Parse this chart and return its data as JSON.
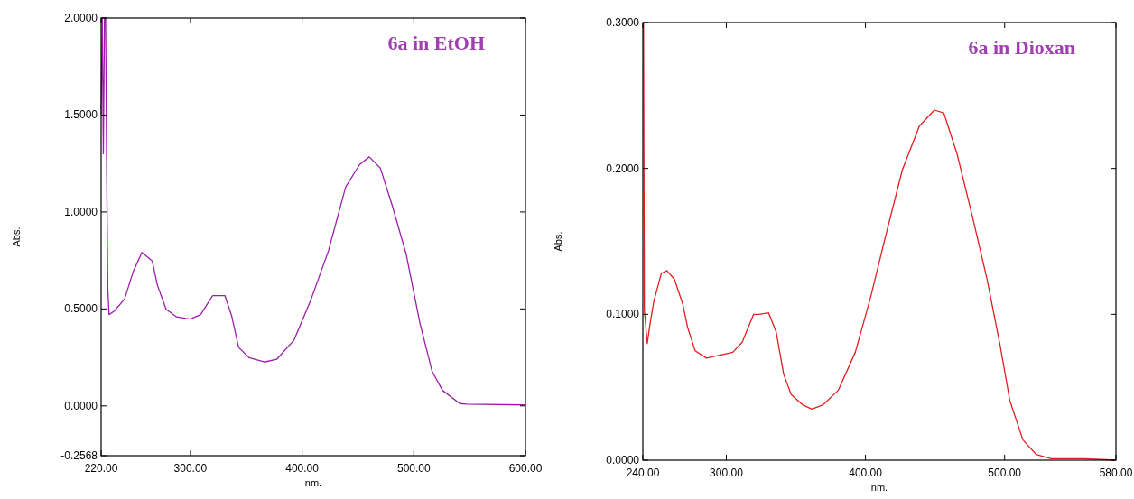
{
  "chart_data": [
    {
      "type": "line",
      "title": "6a in EtOH",
      "xlabel": "nm.",
      "ylabel": "Abs.",
      "xlim": [
        220,
        600
      ],
      "ylim": [
        -0.2568,
        2
      ],
      "xticks": [
        {
          "value": 220,
          "label": "220.00"
        },
        {
          "value": 300,
          "label": "300.00"
        },
        {
          "value": 400,
          "label": "400.00"
        },
        {
          "value": 500,
          "label": "500.00"
        },
        {
          "value": 600,
          "label": "600.00"
        }
      ],
      "yticks": [
        {
          "value": -0.2568,
          "label": "-0.2568"
        },
        {
          "value": 0,
          "label": "0.0000"
        },
        {
          "value": 0.5,
          "label": "0.5000"
        },
        {
          "value": 1,
          "label": "1.0000"
        },
        {
          "value": 1.5,
          "label": "1.5000"
        },
        {
          "value": 2,
          "label": "2.0000"
        }
      ],
      "series": [
        {
          "color": "#9c1ea8",
          "x": [
            220,
            221,
            222,
            223,
            224,
            225,
            226,
            227.1,
            231.8,
            241,
            248.8,
            256.5,
            265.8,
            270.4,
            278.2,
            287.5,
            299.8,
            309.1,
            319.9,
            330.8,
            337,
            343.1,
            352.4,
            366.3,
            377.2,
            392.6,
            408.1,
            423.6,
            439,
            451.4,
            460.1,
            470,
            480.8,
            493.2,
            505.5,
            516.4,
            525.7,
            541.2,
            547.3,
            600
          ],
          "values": [
            1.5,
            2,
            1.3,
            2,
            2,
            1.2,
            0.6,
            0.471,
            0.489,
            0.551,
            0.693,
            0.791,
            0.747,
            0.622,
            0.498,
            0.459,
            0.448,
            0.471,
            0.569,
            0.569,
            0.462,
            0.302,
            0.249,
            0.226,
            0.24,
            0.338,
            0.551,
            0.8,
            1.129,
            1.244,
            1.284,
            1.227,
            1.031,
            0.782,
            0.427,
            0.178,
            0.08,
            0.012,
            0.009,
            0.005
          ]
        }
      ]
    },
    {
      "type": "line",
      "title": "6a in Dioxan",
      "xlabel": "nm.",
      "ylabel": "Abs.",
      "xlim": [
        240,
        580
      ],
      "ylim": [
        0,
        0.3
      ],
      "xticks": [
        {
          "value": 240,
          "label": "240.00"
        },
        {
          "value": 300,
          "label": "300.00"
        },
        {
          "value": 400,
          "label": "400.00"
        },
        {
          "value": 500,
          "label": "500.00"
        },
        {
          "value": 580,
          "label": "580.00"
        }
      ],
      "yticks": [
        {
          "value": 0,
          "label": "0.0000"
        },
        {
          "value": 0.1,
          "label": "0.1000"
        },
        {
          "value": 0.2,
          "label": "0.2000"
        },
        {
          "value": 0.3,
          "label": "0.3000"
        }
      ],
      "series": [
        {
          "color": "#e02020",
          "x": [
            240.5,
            241.1,
            243.2,
            245.1,
            247.9,
            253.3,
            257.3,
            262.7,
            268.7,
            272.2,
            277.6,
            285.7,
            295.2,
            304.7,
            311.5,
            319.6,
            323.6,
            330.4,
            335.8,
            341.2,
            346.6,
            354.8,
            361.5,
            369.6,
            380.5,
            392.7,
            403.5,
            414.3,
            426.5,
            438.7,
            449.5,
            456.3,
            465.8,
            476.6,
            487.4,
            496.9,
            503.7,
            513.1,
            522.6,
            533.5,
            557.8,
            580
          ],
          "values": [
            0.3,
            0.103,
            0.08,
            0.093,
            0.109,
            0.128,
            0.13,
            0.124,
            0.107,
            0.091,
            0.075,
            0.07,
            0.072,
            0.074,
            0.081,
            0.1,
            0.1,
            0.101,
            0.088,
            0.059,
            0.045,
            0.038,
            0.035,
            0.038,
            0.048,
            0.074,
            0.111,
            0.153,
            0.199,
            0.229,
            0.24,
            0.238,
            0.21,
            0.168,
            0.124,
            0.078,
            0.041,
            0.014,
            0.004,
            0.001,
            0.001,
            0
          ]
        }
      ]
    }
  ]
}
